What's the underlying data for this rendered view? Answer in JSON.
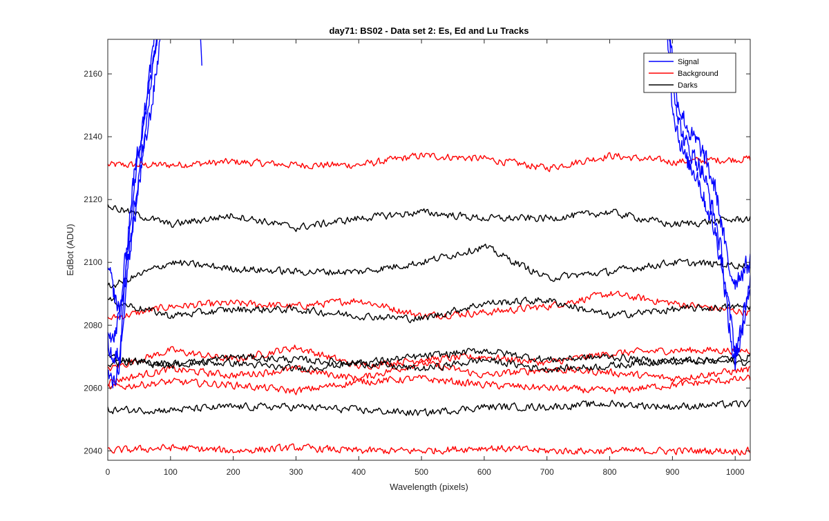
{
  "chart_data": {
    "type": "line",
    "title": "day71: BS02 - Data set 2: Es, Ed and Lu Tracks",
    "xlabel": "Wavelength (pixels)",
    "ylabel": "EdBot (ADU)",
    "xlim": [
      0,
      1024
    ],
    "ylim": [
      2037,
      2171
    ],
    "xticks": [
      0,
      100,
      200,
      300,
      400,
      500,
      600,
      700,
      800,
      900,
      1000
    ],
    "yticks": [
      2040,
      2060,
      2080,
      2100,
      2120,
      2140,
      2160
    ],
    "grid": false,
    "legend": {
      "location": "top-right",
      "entries": [
        {
          "label": "Signal",
          "color": "#0000ff"
        },
        {
          "label": "Background",
          "color": "#ff0000"
        },
        {
          "label": "Darks",
          "color": "#000000"
        }
      ]
    },
    "series_groups": [
      {
        "group": "Signal",
        "color": "#0000ff",
        "lines": [
          {
            "x": [
              0,
              10,
              20,
              30,
              40,
              50,
              60,
              70,
              80,
              90,
              100
            ],
            "y": [
              2099,
              2090,
              2083,
              2098,
              2110,
              2125,
              2138,
              2150,
              2165,
              2185,
              2200
            ]
          },
          {
            "x": [
              0,
              10,
              20,
              30,
              40,
              50,
              60,
              70,
              80,
              90,
              100
            ],
            "y": [
              2075,
              2068,
              2072,
              2095,
              2115,
              2128,
              2142,
              2158,
              2175,
              2195,
              2210
            ]
          },
          {
            "x": [
              0,
              10,
              20,
              30,
              40,
              50,
              60,
              70,
              80,
              90,
              100
            ],
            "y": [
              2064,
              2061,
              2070,
              2100,
              2120,
              2135,
              2150,
              2165,
              2180,
              2198,
              2215
            ]
          },
          {
            "x": [
              0,
              10,
              20,
              30,
              40,
              50,
              60,
              70,
              80,
              90,
              100,
              110,
              120,
              130,
              140,
              150
            ],
            "y": [
              2080,
              2075,
              2085,
              2105,
              2125,
              2138,
              2148,
              2160,
              2175,
              2190,
              2205,
              2215,
              2220,
              2215,
              2200,
              2160
            ]
          },
          {
            "x": [
              890,
              900,
              910,
              920,
              930,
              940,
              950,
              960,
              970,
              980,
              990,
              1000,
              1010,
              1024
            ],
            "y": [
              2185,
              2160,
              2145,
              2138,
              2135,
              2132,
              2128,
              2120,
              2112,
              2100,
              2085,
              2072,
              2078,
              2090
            ]
          },
          {
            "x": [
              890,
              900,
              910,
              920,
              930,
              940,
              950,
              960,
              970,
              980,
              990,
              1000,
              1010,
              1024
            ],
            "y": [
              2180,
              2150,
              2140,
              2133,
              2130,
              2128,
              2120,
              2115,
              2108,
              2098,
              2080,
              2066,
              2080,
              2095
            ]
          },
          {
            "x": [
              890,
              900,
              910,
              920,
              930,
              940,
              950,
              960,
              970,
              980,
              990,
              1000,
              1010,
              1024
            ],
            "y": [
              2190,
              2165,
              2150,
              2145,
              2140,
              2138,
              2134,
              2128,
              2122,
              2110,
              2098,
              2094,
              2097,
              2100
            ]
          }
        ]
      },
      {
        "group": "Background",
        "color": "#ff0000",
        "lines": [
          {
            "x": [
              0,
              100,
              200,
              300,
              400,
              500,
              600,
              700,
              800,
              900,
              1024
            ],
            "y": [
              2131,
              2131,
              2132,
              2131,
              2131,
              2134,
              2133,
              2130,
              2134,
              2132,
              2133
            ]
          },
          {
            "x": [
              0,
              100,
              200,
              300,
              400,
              500,
              600,
              700,
              800,
              900,
              1024
            ],
            "y": [
              2082,
              2086,
              2087,
              2086,
              2088,
              2083,
              2084,
              2086,
              2090,
              2087,
              2084
            ]
          },
          {
            "x": [
              0,
              100,
              200,
              300,
              400,
              500,
              600,
              700,
              800,
              900,
              1024
            ],
            "y": [
              2066,
              2072,
              2069,
              2073,
              2067,
              2069,
              2070,
              2068,
              2071,
              2072,
              2072
            ]
          },
          {
            "x": [
              0,
              100,
              200,
              300,
              400,
              500,
              600,
              700,
              800,
              900,
              1024
            ],
            "y": [
              2062,
              2066,
              2064,
              2066,
              2063,
              2068,
              2064,
              2066,
              2065,
              2063,
              2066
            ]
          },
          {
            "x": [
              0,
              100,
              200,
              300,
              400,
              500,
              600,
              700,
              800,
              900,
              1024
            ],
            "y": [
              2060,
              2062,
              2061,
              2059,
              2062,
              2063,
              2061,
              2060,
              2059,
              2061,
              2063
            ]
          },
          {
            "x": [
              0,
              100,
              200,
              300,
              400,
              500,
              600,
              700,
              800,
              900,
              1024
            ],
            "y": [
              2040,
              2041,
              2040,
              2041,
              2040,
              2040,
              2041,
              2040,
              2040,
              2040,
              2040
            ]
          }
        ]
      },
      {
        "group": "Darks",
        "color": "#000000",
        "lines": [
          {
            "x": [
              0,
              100,
              200,
              300,
              400,
              500,
              600,
              700,
              800,
              900,
              1024
            ],
            "y": [
              2118,
              2112,
              2115,
              2111,
              2114,
              2116,
              2114,
              2114,
              2116,
              2112,
              2114
            ]
          },
          {
            "x": [
              0,
              100,
              200,
              300,
              400,
              500,
              600,
              700,
              800,
              900,
              1024
            ],
            "y": [
              2092,
              2100,
              2098,
              2097,
              2097,
              2100,
              2105,
              2095,
              2097,
              2100,
              2099
            ]
          },
          {
            "x": [
              0,
              100,
              200,
              300,
              400,
              500,
              600,
              700,
              800,
              900,
              1024
            ],
            "y": [
              2088,
              2083,
              2085,
              2085,
              2083,
              2082,
              2087,
              2088,
              2083,
              2085,
              2086
            ]
          },
          {
            "x": [
              0,
              100,
              200,
              300,
              400,
              500,
              600,
              700,
              800,
              900,
              1024
            ],
            "y": [
              2070,
              2067,
              2070,
              2069,
              2068,
              2070,
              2072,
              2069,
              2070,
              2068,
              2070
            ]
          },
          {
            "x": [
              0,
              100,
              200,
              300,
              400,
              500,
              600,
              700,
              800,
              900,
              1024
            ],
            "y": [
              2068,
              2068,
              2068,
              2066,
              2068,
              2066,
              2069,
              2066,
              2067,
              2069,
              2068
            ]
          },
          {
            "x": [
              0,
              100,
              200,
              300,
              400,
              500,
              600,
              700,
              800,
              900,
              1024
            ],
            "y": [
              2053,
              2053,
              2054,
              2054,
              2053,
              2052,
              2054,
              2054,
              2055,
              2054,
              2055
            ]
          }
        ]
      }
    ]
  }
}
